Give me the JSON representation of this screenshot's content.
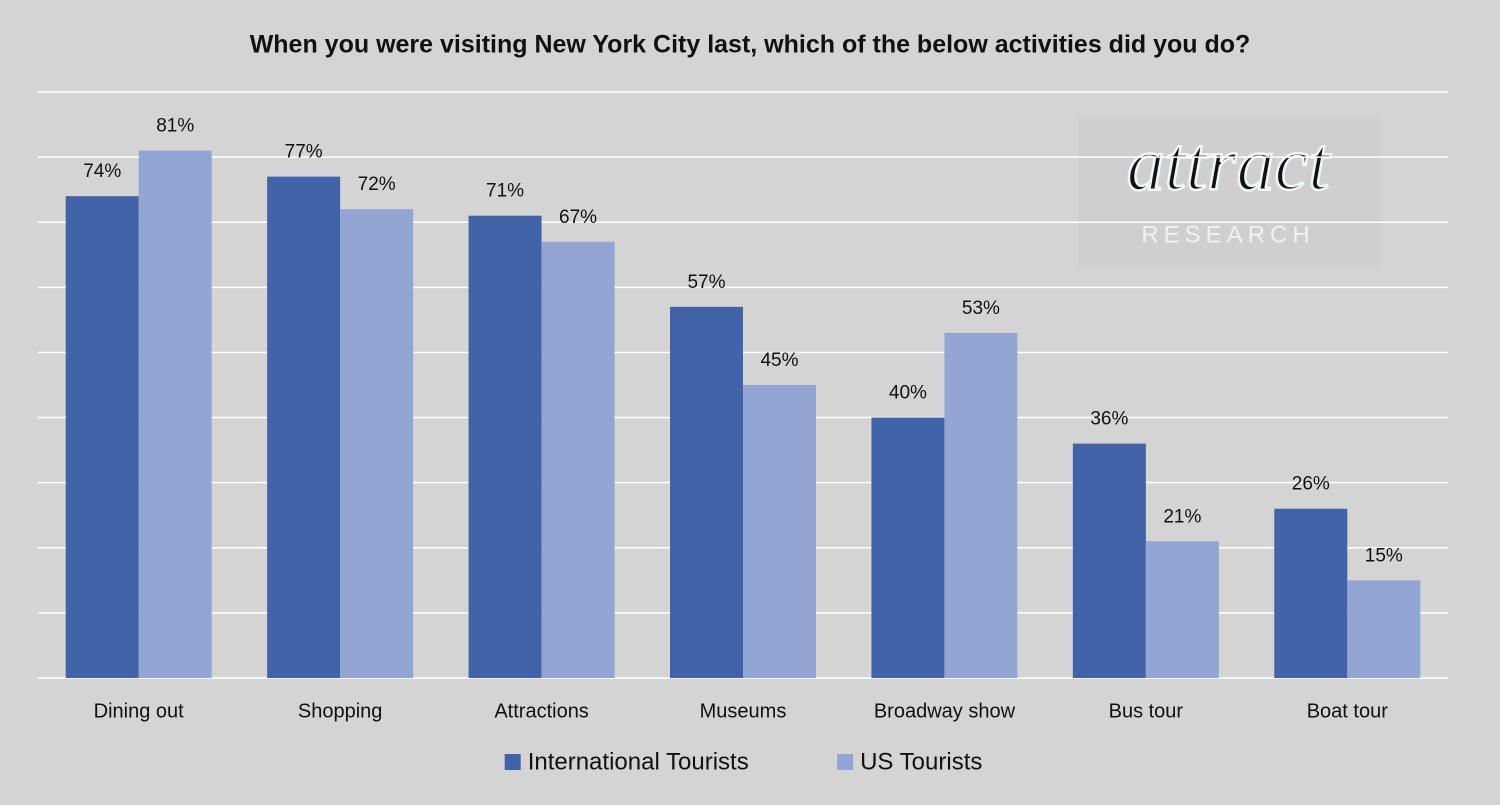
{
  "chart_data": {
    "type": "bar",
    "title": "When you were visiting New York City last, which of the below activities did you do?",
    "categories": [
      "Dining out",
      "Shopping",
      "Attractions",
      "Museums",
      "Broadway show",
      "Bus tour",
      "Boat tour"
    ],
    "series": [
      {
        "name": "International Tourists",
        "color": "#4263a7",
        "values": [
          74,
          77,
          71,
          57,
          40,
          36,
          26
        ],
        "value_labels": [
          "74%",
          "77%",
          "71%",
          "57%",
          "40%",
          "36%",
          "26%"
        ]
      },
      {
        "name": "US Tourists",
        "color": "#93a5d2",
        "values": [
          81,
          72,
          67,
          45,
          53,
          21,
          15
        ],
        "value_labels": [
          "81%",
          "72%",
          "67%",
          "45%",
          "53%",
          "21%",
          "15%"
        ]
      }
    ],
    "ylim": [
      0,
      90
    ],
    "yticks": [
      0,
      10,
      20,
      30,
      40,
      50,
      60,
      70,
      80,
      90
    ],
    "grid": true,
    "tick_labels": false,
    "legend": "bottom",
    "watermark": [
      "attract",
      "RESEARCH"
    ]
  }
}
